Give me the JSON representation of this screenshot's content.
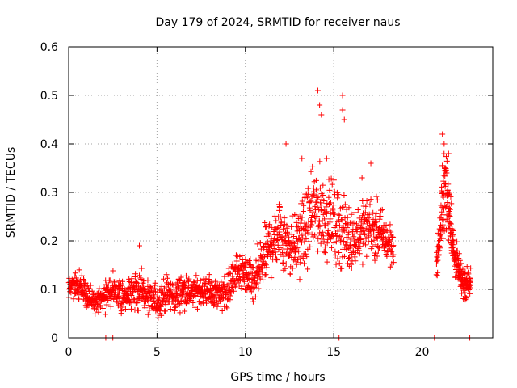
{
  "chart_data": {
    "type": "scatter",
    "title": "Day 179 of 2024, SRMTID for receiver naus",
    "xlabel": "GPS time / hours",
    "ylabel": "SRMTID / TECUs",
    "xlim": [
      0,
      24
    ],
    "ylim": [
      0,
      0.6
    ],
    "xticks": [
      0,
      5,
      10,
      15,
      20
    ],
    "xtick_labels": [
      "0",
      "5",
      "10",
      "15",
      "20"
    ],
    "yticks": [
      0,
      0.1,
      0.2,
      0.3,
      0.4,
      0.5,
      0.6
    ],
    "ytick_labels": [
      "0",
      "0.1",
      "0.2",
      "0.3",
      "0.4",
      "0.5",
      "0.6"
    ],
    "grid": true,
    "marker": "+",
    "color": "#ff0000",
    "series": [
      {
        "name": "SRMTID",
        "envelope_x": [
          0,
          0.5,
          1,
          1.5,
          2,
          2.5,
          3,
          3.5,
          4,
          4.5,
          5,
          5.5,
          6,
          6.5,
          7,
          7.5,
          8,
          8.5,
          9,
          9.5,
          10,
          10.5,
          11,
          11.5,
          12,
          12.5,
          13,
          13.5,
          14,
          14.5,
          15,
          15.5,
          16,
          16.5,
          17,
          17.5,
          18,
          18.4
        ],
        "envelope_center": [
          0.105,
          0.11,
          0.09,
          0.07,
          0.085,
          0.1,
          0.085,
          0.09,
          0.1,
          0.08,
          0.075,
          0.09,
          0.085,
          0.1,
          0.09,
          0.1,
          0.095,
          0.09,
          0.1,
          0.14,
          0.13,
          0.11,
          0.16,
          0.2,
          0.22,
          0.19,
          0.2,
          0.23,
          0.27,
          0.25,
          0.24,
          0.22,
          0.2,
          0.22,
          0.23,
          0.22,
          0.2,
          0.19
        ],
        "envelope_spread": [
          0.025,
          0.03,
          0.03,
          0.025,
          0.03,
          0.035,
          0.035,
          0.035,
          0.04,
          0.035,
          0.035,
          0.035,
          0.035,
          0.035,
          0.03,
          0.03,
          0.03,
          0.03,
          0.04,
          0.04,
          0.04,
          0.05,
          0.06,
          0.07,
          0.08,
          0.07,
          0.07,
          0.08,
          0.09,
          0.09,
          0.08,
          0.08,
          0.06,
          0.06,
          0.06,
          0.06,
          0.05,
          0.04
        ],
        "peaks": [
          {
            "x": 4.0,
            "y": 0.19
          },
          {
            "x": 12.3,
            "y": 0.4
          },
          {
            "x": 13.2,
            "y": 0.37
          },
          {
            "x": 14.1,
            "y": 0.51
          },
          {
            "x": 14.2,
            "y": 0.48
          },
          {
            "x": 14.3,
            "y": 0.46
          },
          {
            "x": 14.6,
            "y": 0.37
          },
          {
            "x": 15.5,
            "y": 0.5
          },
          {
            "x": 15.5,
            "y": 0.47
          },
          {
            "x": 15.6,
            "y": 0.45
          },
          {
            "x": 16.6,
            "y": 0.33
          },
          {
            "x": 17.1,
            "y": 0.36
          }
        ],
        "late_envelope_x": [
          20.8,
          21.0,
          21.2,
          21.4,
          21.6,
          21.8,
          22.0,
          22.2,
          22.4,
          22.7
        ],
        "late_envelope_center": [
          0.15,
          0.2,
          0.3,
          0.3,
          0.25,
          0.17,
          0.15,
          0.12,
          0.11,
          0.12
        ],
        "late_envelope_spread": [
          0.03,
          0.04,
          0.1,
          0.08,
          0.07,
          0.04,
          0.04,
          0.03,
          0.03,
          0.03
        ],
        "late_peaks": [
          {
            "x": 21.15,
            "y": 0.42
          },
          {
            "x": 21.25,
            "y": 0.4
          },
          {
            "x": 21.5,
            "y": 0.38
          }
        ],
        "zero_markers": [
          2.1,
          2.5,
          15.3,
          20.7,
          22.7
        ]
      }
    ]
  }
}
